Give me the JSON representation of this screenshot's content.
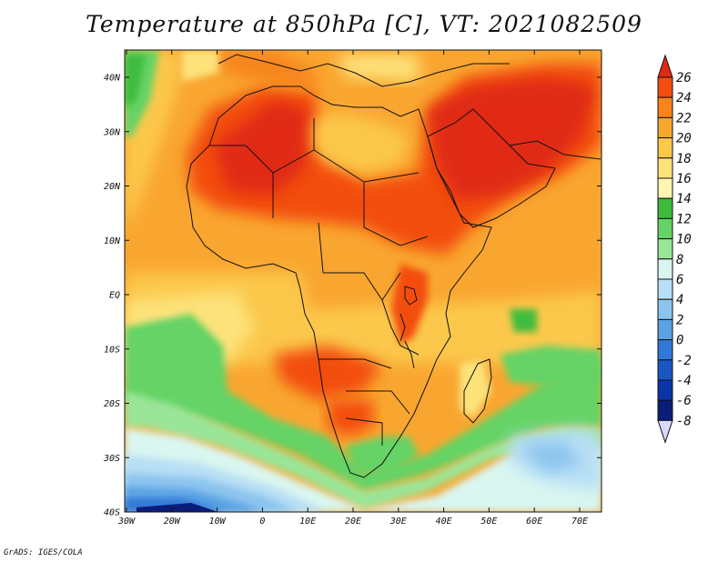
{
  "title": "Temperature at 850hPa [C], VT: 2021082509",
  "credit": "GrADS: IGES/COLA",
  "lat_labels": [
    "40N",
    "30N",
    "20N",
    "10N",
    "EQ",
    "10S",
    "20S",
    "30S",
    "40S"
  ],
  "lon_labels": [
    "30W",
    "20W",
    "10W",
    "0",
    "10E",
    "20E",
    "30E",
    "40E",
    "50E",
    "60E",
    "70E"
  ],
  "colorbar": {
    "labels": [
      "26",
      "24",
      "22",
      "20",
      "18",
      "16",
      "14",
      "12",
      "10",
      "8",
      "6",
      "4",
      "2",
      "0",
      "-2",
      "-4",
      "-6",
      "-8"
    ],
    "colors": [
      "#e02a15",
      "#f34d11",
      "#f7851c",
      "#f9a630",
      "#fbc84c",
      "#fde27a",
      "#fdf5b0",
      "#3dbb3d",
      "#65d365",
      "#99e699",
      "#d9f6f0",
      "#b8dff5",
      "#8cc4ee",
      "#5aa2e3",
      "#3178d6",
      "#1a55c4",
      "#0b35a6",
      "#0a1d7a",
      "#06125e"
    ]
  }
}
